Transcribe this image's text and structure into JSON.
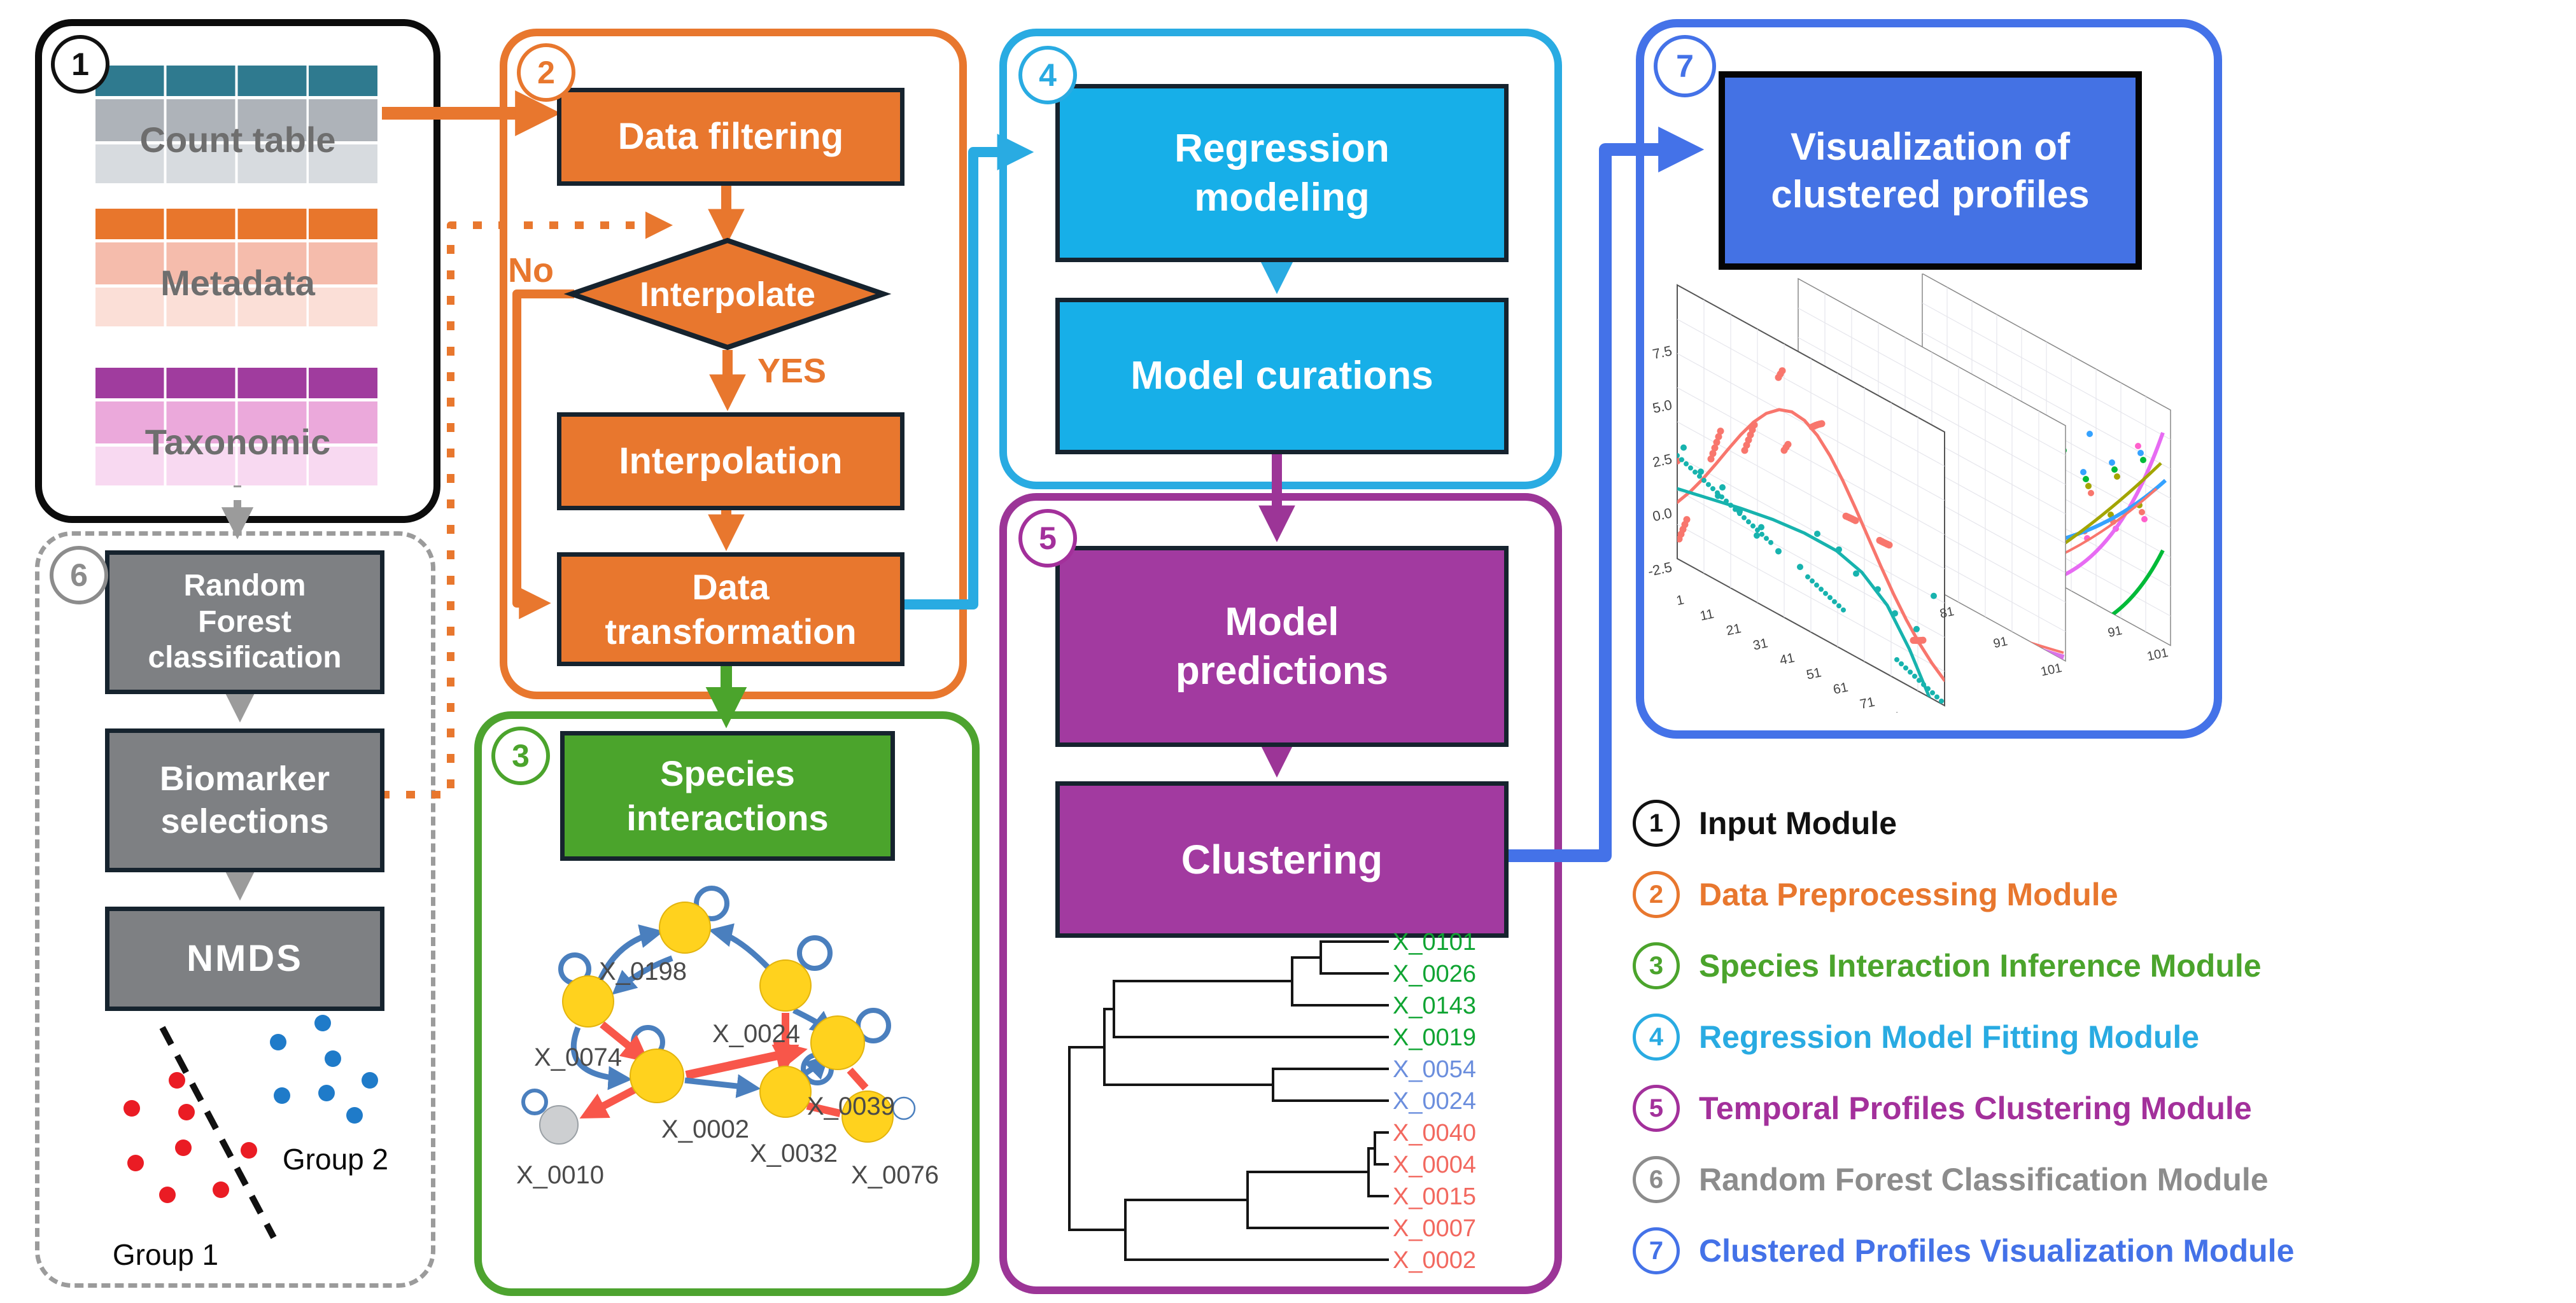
{
  "modules": {
    "m1": {
      "number": "1",
      "tables": [
        {
          "label": "Count table"
        },
        {
          "label": "Metadata"
        },
        {
          "label": "Taxonomic"
        }
      ]
    },
    "m2": {
      "number": "2",
      "filtering": "Data filtering",
      "diamond": "Interpolate",
      "no_label": "No",
      "yes_label": "YES",
      "interpolation": "Interpolation",
      "transformation_lines": [
        "Data",
        "transformation"
      ]
    },
    "m3": {
      "number": "3",
      "box_lines": [
        "Species",
        "interactions"
      ],
      "nodes": [
        "X_0198",
        "X_0074",
        "X_0024",
        "X_0039",
        "X_0002",
        "X_0032",
        "X_0076",
        "X_0010"
      ]
    },
    "m4": {
      "number": "4",
      "modeling_lines": [
        "Regression",
        "modeling"
      ],
      "curations": "Model curations"
    },
    "m5": {
      "number": "5",
      "predictions_lines": [
        "Model",
        "predictions"
      ],
      "clustering": "Clustering",
      "leaves": [
        {
          "label": "X_0101",
          "color": "#0FA432"
        },
        {
          "label": "X_0026",
          "color": "#0FA432"
        },
        {
          "label": "X_0143",
          "color": "#0FA432"
        },
        {
          "label": "X_0019",
          "color": "#0FA432"
        },
        {
          "label": "X_0054",
          "color": "#6B8EDD"
        },
        {
          "label": "X_0024",
          "color": "#6B8EDD"
        },
        {
          "label": "X_0040",
          "color": "#F2685F"
        },
        {
          "label": "X_0004",
          "color": "#F2685F"
        },
        {
          "label": "X_0015",
          "color": "#F2685F"
        },
        {
          "label": "X_0007",
          "color": "#F2685F"
        },
        {
          "label": "X_0002",
          "color": "#F2685F"
        }
      ]
    },
    "m6": {
      "number": "6",
      "rf_lines": [
        "Random",
        "Forest",
        "classification"
      ],
      "biomarker_lines": [
        "Biomarker",
        "selections"
      ],
      "nmds": "NMDS",
      "group1": "Group 1",
      "group2": "Group 2"
    },
    "m7": {
      "number": "7",
      "box_lines": [
        "Visualization of",
        "clustered profiles"
      ],
      "plot": {
        "y_ticks": [
          "7.5",
          "5.0",
          "2.5",
          "0.0",
          "-2.5"
        ],
        "x_ticks": [
          "1",
          "11",
          "21",
          "31",
          "41",
          "51",
          "61",
          "71",
          "81",
          "91",
          "101"
        ],
        "x_ticks_p2": [
          "81",
          "91",
          "101"
        ],
        "x_ticks_p3": [
          "91",
          "101"
        ]
      }
    }
  },
  "legend": {
    "items": [
      {
        "number": "1",
        "label": "Input Module",
        "color": "#111111"
      },
      {
        "number": "2",
        "label": "Data Preprocessing Module",
        "color": "#E8772E"
      },
      {
        "number": "3",
        "label": "Species Interaction Inference Module",
        "color": "#4BA42C"
      },
      {
        "number": "4",
        "label": "Regression Model Fitting Module",
        "color": "#29ABE2"
      },
      {
        "number": "5",
        "label": "Temporal Profiles Clustering Module",
        "color": "#A3309B"
      },
      {
        "number": "6",
        "label": "Random Forest Classification Module",
        "color": "#8C8C8C"
      },
      {
        "number": "7",
        "label": "Clustered Profiles Visualization Module",
        "color": "#4472E8"
      }
    ]
  },
  "colors": {
    "orange": "#E8772E",
    "cyan_border": "#29ABE2",
    "cyan_fill": "#17AFE8",
    "purple_border": "#9C3597",
    "purple_fill": "#A23AA0",
    "green": "#4BA42C",
    "royal": "#4472E8",
    "gray_box": "#7E8083",
    "gray_dash": "#9B9B9B",
    "navy_box_border": "#16232E",
    "teal_header": "#2F7A8F",
    "magenta_header": "#A03C9E",
    "node_yellow": "#FFD21E",
    "edge_blue": "#4A7FBE",
    "edge_red": "#F8564A",
    "dot_red": "#EA1C24",
    "dot_blue": "#1F7BC9"
  }
}
